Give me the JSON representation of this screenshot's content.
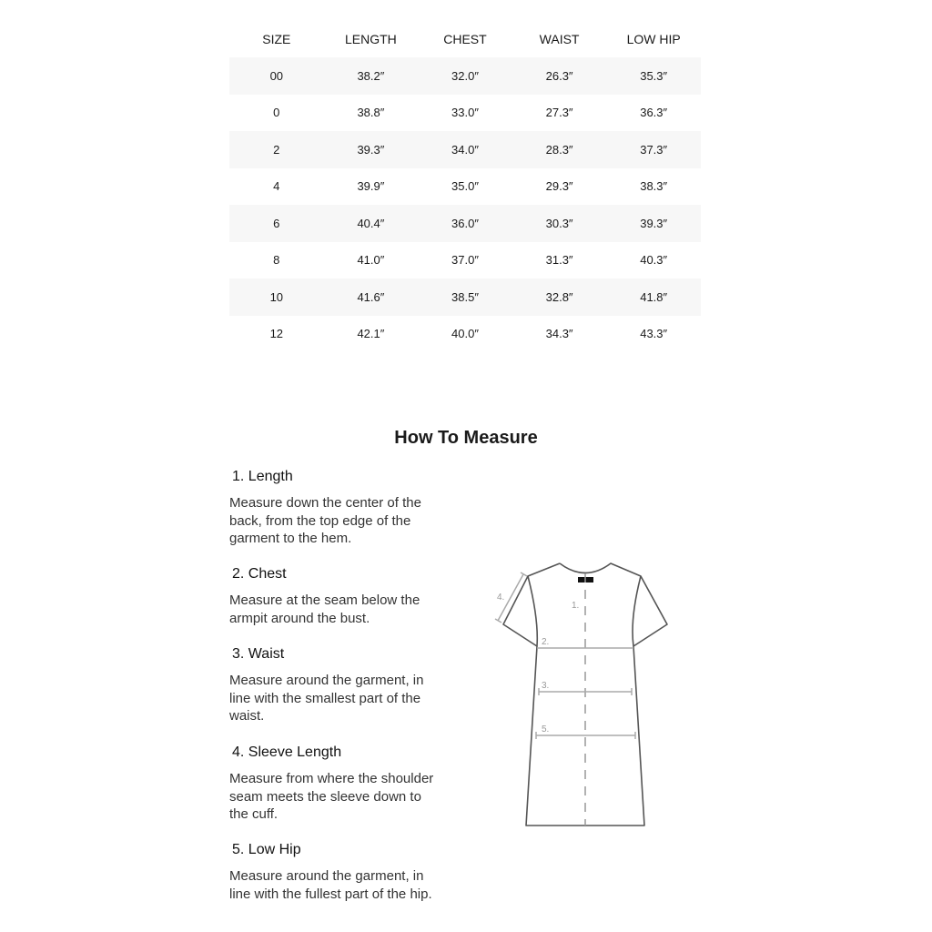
{
  "size_chart": {
    "headers": [
      "SIZE",
      "LENGTH",
      "CHEST",
      "WAIST",
      "LOW HIP"
    ],
    "rows": [
      [
        "00",
        "38.2″",
        "32.0″",
        "26.3″",
        "35.3″"
      ],
      [
        "0",
        "38.8″",
        "33.0″",
        "27.3″",
        "36.3″"
      ],
      [
        "2",
        "39.3″",
        "34.0″",
        "28.3″",
        "37.3″"
      ],
      [
        "4",
        "39.9″",
        "35.0″",
        "29.3″",
        "38.3″"
      ],
      [
        "6",
        "40.4″",
        "36.0″",
        "30.3″",
        "39.3″"
      ],
      [
        "8",
        "41.0″",
        "37.0″",
        "31.3″",
        "40.3″"
      ],
      [
        "10",
        "41.6″",
        "38.5″",
        "32.8″",
        "41.8″"
      ],
      [
        "12",
        "42.1″",
        "40.0″",
        "34.3″",
        "43.3″"
      ]
    ]
  },
  "how_to_measure": {
    "title": "How To Measure",
    "items": [
      {
        "title": "1. Length",
        "desc": [
          "Measure down the center of the",
          "back, from the top edge of the",
          "garment to the hem."
        ]
      },
      {
        "title": "2. Chest",
        "desc": [
          "Measure at the seam below the",
          "armpit around the bust."
        ]
      },
      {
        "title": "3. Waist",
        "desc": [
          "Measure around the garment, in",
          "line with the smallest part of the",
          "waist."
        ]
      },
      {
        "title": "4. Sleeve Length",
        "desc": [
          "Measure from where the shoulder",
          "seam meets the sleeve down to",
          "the cuff."
        ]
      },
      {
        "title": "5. Low Hip",
        "desc": [
          "Measure around the garment, in",
          "line with the fullest part of the hip."
        ]
      }
    ],
    "diagram_labels": [
      "1.",
      "2.",
      "3.",
      "4.",
      "5."
    ]
  },
  "colors": {
    "row_stripe": "#f7f7f7",
    "outline": "#555555",
    "measure": "#aaaaaa"
  }
}
